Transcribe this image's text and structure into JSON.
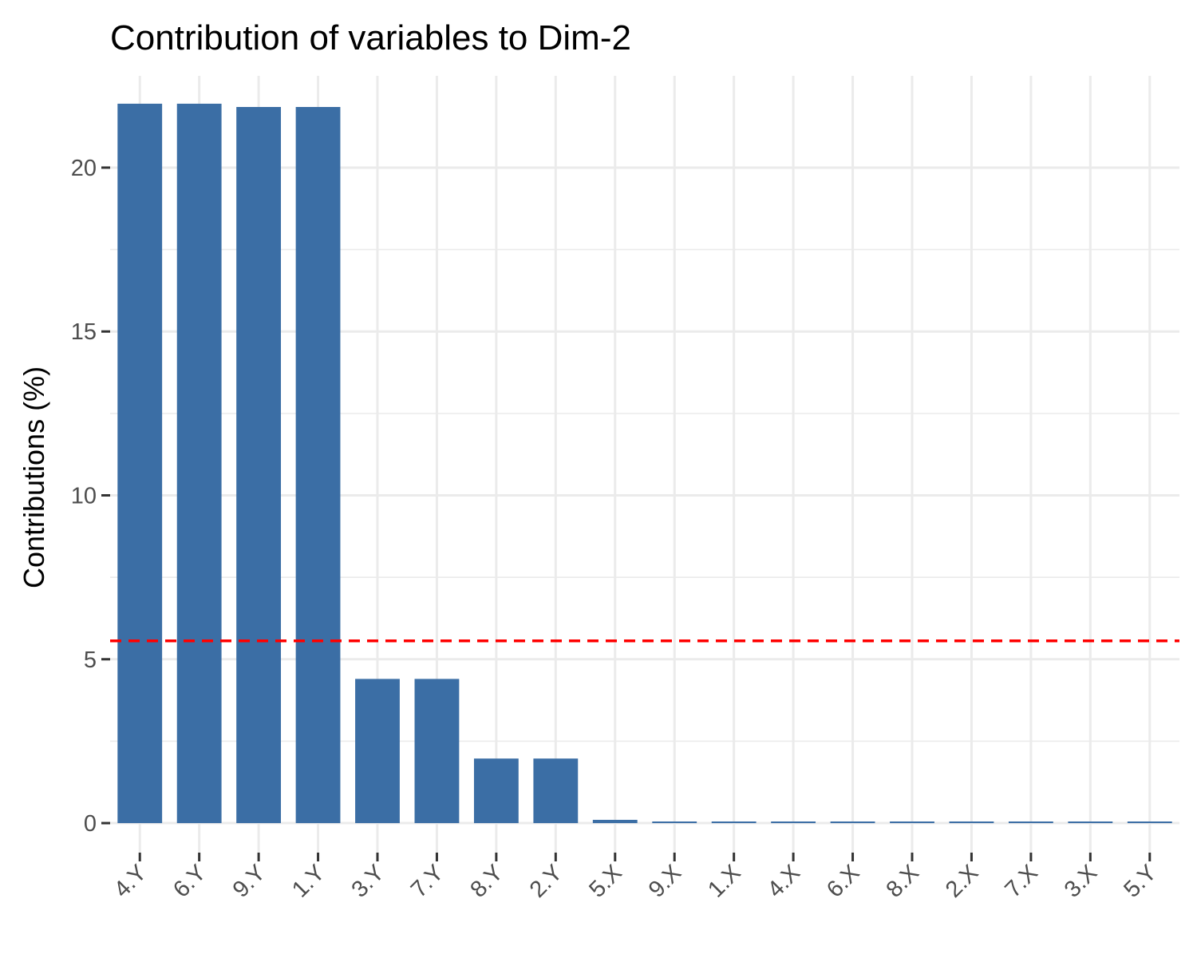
{
  "chart_data": {
    "type": "bar",
    "title": "Contribution of variables to Dim-2",
    "xlabel": "",
    "ylabel": "Contributions (%)",
    "categories": [
      "4.Y",
      "6.Y",
      "9.Y",
      "1.Y",
      "3.Y",
      "7.Y",
      "8.Y",
      "2.Y",
      "5.X",
      "9.X",
      "1.X",
      "4.X",
      "6.X",
      "8.X",
      "2.X",
      "7.X",
      "3.X",
      "5.Y"
    ],
    "values": [
      21.95,
      21.95,
      21.85,
      21.85,
      4.4,
      4.4,
      1.97,
      1.97,
      0.1,
      0.05,
      0.05,
      0.05,
      0.05,
      0.05,
      0.05,
      0.05,
      0.05,
      0.05
    ],
    "ylim": [
      -0.9,
      22.8
    ],
    "yticks": [
      0,
      5,
      10,
      15,
      20
    ],
    "reference_line": 5.56,
    "grid": true,
    "bar_color": "#3b6ea5",
    "reference_line_color": "#ff0000",
    "grid_color": "#ebebeb",
    "background_color": "#ffffff"
  }
}
